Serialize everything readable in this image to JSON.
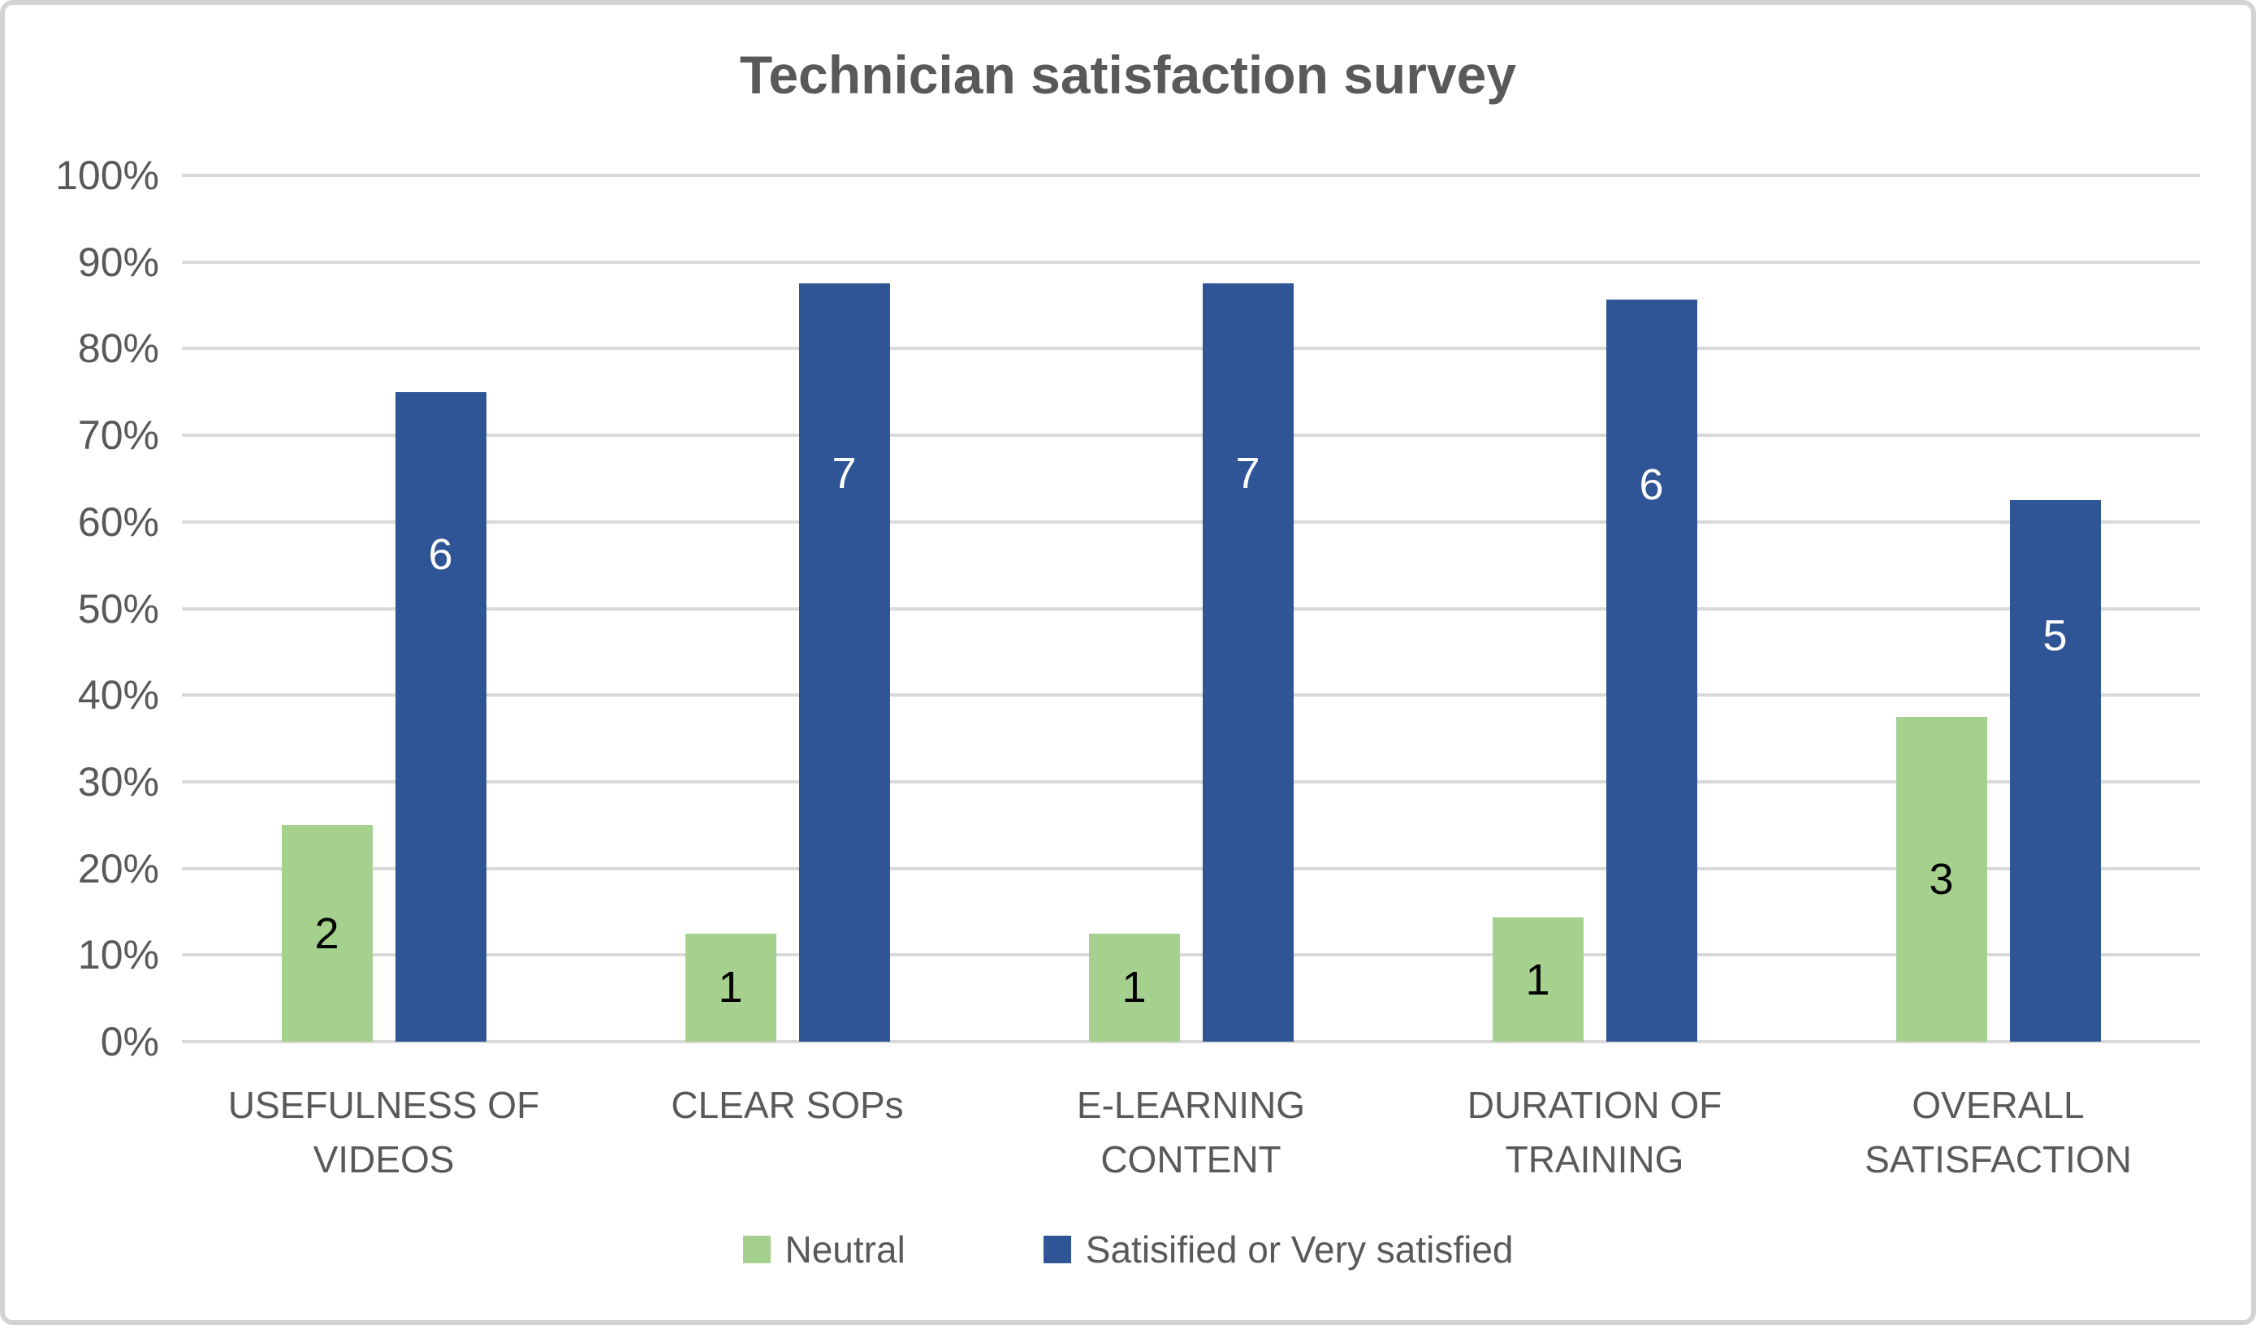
{
  "title": "Technician satisfaction survey",
  "colors": {
    "neutral": "#a6d08e",
    "satisfied": "#2f5597",
    "gridline": "#d9d9d9",
    "axis_text": "#595959",
    "label_on_neutral": "#000000",
    "label_on_satisfied": "#ffffff",
    "frame_border": "#d2d2d2",
    "background": "#ffffff"
  },
  "chart_data": {
    "type": "bar",
    "title": "Technician satisfaction survey",
    "categories": [
      "USEFULNESS OF\nVIDEOS",
      "CLEAR SOPs",
      "E-LEARNING\nCONTENT",
      "DURATION OF\nTRAINING",
      "OVERALL\nSATISFACTION"
    ],
    "series": [
      {
        "name": "Neutral",
        "color": "#a6d08e",
        "counts": [
          2,
          1,
          1,
          1,
          3
        ],
        "percents": [
          25,
          12.5,
          12.5,
          14.3,
          37.5
        ]
      },
      {
        "name": "Satisified or Very satisfied",
        "color": "#2f5597",
        "counts": [
          6,
          7,
          7,
          6,
          5
        ],
        "percents": [
          75,
          87.5,
          87.5,
          85.7,
          62.5
        ]
      }
    ],
    "xlabel": "",
    "ylabel": "",
    "ylim": [
      0,
      100
    ],
    "yticks": [
      "0%",
      "10%",
      "20%",
      "30%",
      "40%",
      "50%",
      "60%",
      "70%",
      "80%",
      "90%",
      "100%"
    ],
    "grid": true,
    "legend_position": "bottom",
    "data_labels": "counts"
  }
}
